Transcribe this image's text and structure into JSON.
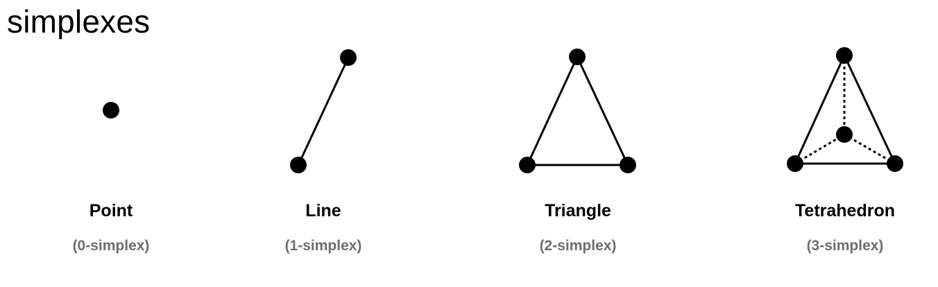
{
  "title": "simplexes",
  "colors": {
    "ink": "#000000",
    "subtitle": "#6e6e6e",
    "background": "#ffffff"
  },
  "simplexes": [
    {
      "name": "Point",
      "subtitle": "(0-simplex)"
    },
    {
      "name": "Line",
      "subtitle": "(1-simplex)"
    },
    {
      "name": "Triangle",
      "subtitle": "(2-simplex)"
    },
    {
      "name": "Tetrahedron",
      "subtitle": "(3-simplex)"
    }
  ]
}
